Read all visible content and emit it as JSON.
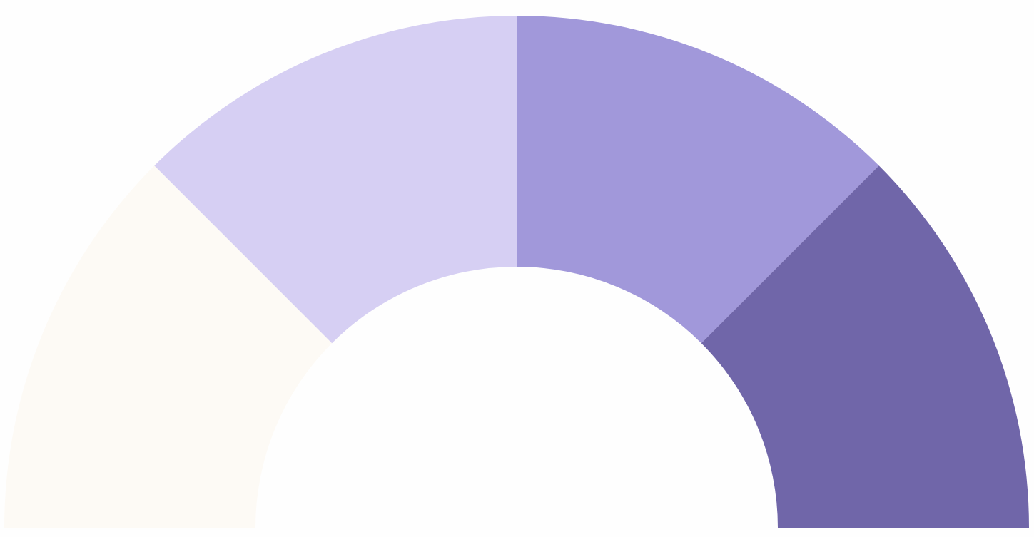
{
  "chart_data": {
    "type": "pie",
    "shape": "semicircular-gauge",
    "segments": [
      {
        "value": 25,
        "color": "#fdfaf5"
      },
      {
        "value": 25,
        "color": "#d6cff3"
      },
      {
        "value": 25,
        "color": "#a198da"
      },
      {
        "value": 25,
        "color": "#7066a9"
      }
    ],
    "range": [
      0,
      100
    ],
    "legend": "none",
    "grid": false
  },
  "background": "#fefefe"
}
